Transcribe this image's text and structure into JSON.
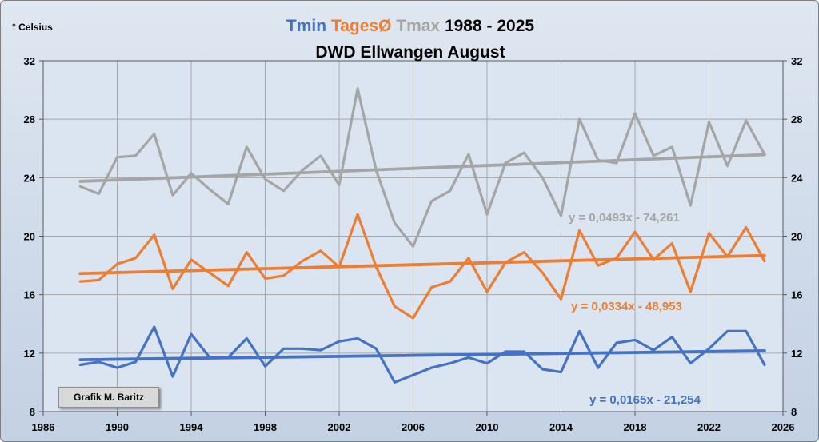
{
  "chart_data": {
    "type": "line",
    "title_parts": [
      {
        "text": "Tmin",
        "color": "#4472c4"
      },
      {
        "text": "TagesØ",
        "color": "#ed7d31"
      },
      {
        "text": "Tmax",
        "color": "#a5a5a5"
      },
      {
        "text": "1988 - 2025",
        "color": "#000000"
      }
    ],
    "subtitle": "DWD Ellwangen August",
    "ylabel": "° Celsius",
    "credit": "Grafik M. Baritz",
    "xlim": [
      1986,
      2026
    ],
    "ylim": [
      8,
      32
    ],
    "x_ticks": [
      "1986",
      "1990",
      "1994",
      "1998",
      "2002",
      "2006",
      "2010",
      "2014",
      "2018",
      "2022",
      "2026"
    ],
    "y_ticks": [
      "8",
      "12",
      "16",
      "20",
      "24",
      "28",
      "32"
    ],
    "x": [
      1988,
      1989,
      1990,
      1991,
      1992,
      1993,
      1994,
      1995,
      1996,
      1997,
      1998,
      1999,
      2000,
      2001,
      2002,
      2003,
      2004,
      2005,
      2006,
      2007,
      2008,
      2009,
      2010,
      2011,
      2012,
      2013,
      2014,
      2015,
      2016,
      2017,
      2018,
      2019,
      2020,
      2021,
      2022,
      2023,
      2024,
      2025
    ],
    "series": [
      {
        "key": "tmax",
        "color": "#a5a5a5",
        "values": [
          23.4,
          22.9,
          25.4,
          25.5,
          27.0,
          22.8,
          24.3,
          23.2,
          22.2,
          26.1,
          23.9,
          23.1,
          24.5,
          25.5,
          23.5,
          30.1,
          24.5,
          20.9,
          19.3,
          22.4,
          23.1,
          25.6,
          21.5,
          25.0,
          25.7,
          24.0,
          21.4,
          28.0,
          25.2,
          25.0,
          28.4,
          25.5,
          26.1,
          22.1,
          27.8,
          24.8,
          27.9,
          25.6
        ],
        "trend": {
          "equation": "y = 0,0493x - 74,261",
          "slope": 0.0493,
          "intercept": -74.261
        }
      },
      {
        "key": "tmean",
        "color": "#ed7d31",
        "values": [
          16.9,
          17.0,
          18.1,
          18.5,
          20.1,
          16.4,
          18.4,
          17.5,
          16.6,
          18.9,
          17.1,
          17.3,
          18.3,
          19.0,
          17.9,
          21.5,
          17.9,
          15.2,
          14.4,
          16.5,
          16.9,
          18.5,
          16.2,
          18.2,
          18.9,
          17.5,
          15.7,
          20.4,
          18.0,
          18.5,
          20.3,
          18.4,
          19.5,
          16.2,
          20.2,
          18.6,
          20.6,
          18.3
        ],
        "trend": {
          "equation": "y = 0,0334x - 48,953",
          "slope": 0.0334,
          "intercept": -48.953
        }
      },
      {
        "key": "tmin",
        "color": "#4472c4",
        "values": [
          11.2,
          11.4,
          11.0,
          11.4,
          13.8,
          10.4,
          13.3,
          11.7,
          11.7,
          13.0,
          11.1,
          12.3,
          12.3,
          12.2,
          12.8,
          13.0,
          12.3,
          10.0,
          10.5,
          11.0,
          11.3,
          11.7,
          11.3,
          12.1,
          12.1,
          10.9,
          10.7,
          13.5,
          11.0,
          12.7,
          12.9,
          12.2,
          13.1,
          11.3,
          12.3,
          13.5,
          13.5,
          11.2
        ],
        "trend": {
          "equation": "y = 0,0165x - 21,254",
          "slope": 0.0165,
          "intercept": -21.254
        }
      }
    ]
  }
}
